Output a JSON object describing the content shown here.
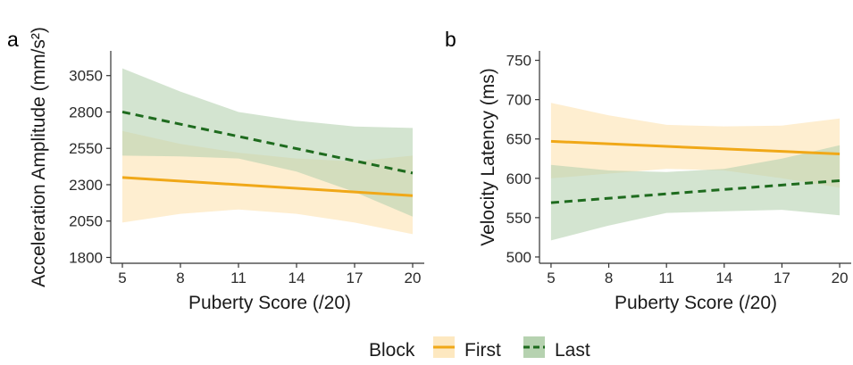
{
  "colors": {
    "first": "#f0a818",
    "first_band": "#fde8c0",
    "last": "#1e6b1e",
    "last_band": "#b6d2b0"
  },
  "legend": {
    "title": "Block",
    "items": [
      {
        "label": "First",
        "line": "solid",
        "color": "#f0a818"
      },
      {
        "label": "Last",
        "line": "dashed",
        "color": "#1e6b1e"
      }
    ]
  },
  "chart_data": [
    {
      "type": "line",
      "panel_label": "a",
      "xlabel": "Puberty Score (/20)",
      "ylabel": "Acceleration Amplitude (mm/s²)",
      "xlim": [
        4.4,
        20.6
      ],
      "ylim": [
        1760,
        3220
      ],
      "x_ticks": [
        5,
        8,
        11,
        14,
        17,
        20
      ],
      "y_ticks": [
        1800,
        2050,
        2300,
        2550,
        2800,
        3050
      ],
      "grid": false,
      "legend_position": "bottom",
      "series": [
        {
          "name": "First",
          "style": "solid",
          "x": [
            5,
            20
          ],
          "y": [
            2350,
            2225
          ],
          "band_x": [
            5,
            8,
            11,
            14,
            17,
            20
          ],
          "band_lower": [
            2040,
            2100,
            2130,
            2100,
            2040,
            1960
          ],
          "band_upper": [
            2670,
            2580,
            2520,
            2480,
            2460,
            2500
          ]
        },
        {
          "name": "Last",
          "style": "dashed",
          "x": [
            5,
            20
          ],
          "y": [
            2800,
            2380
          ],
          "band_x": [
            5,
            8,
            11,
            14,
            17,
            20
          ],
          "band_lower": [
            2500,
            2495,
            2480,
            2390,
            2250,
            2080
          ],
          "band_upper": [
            3100,
            2940,
            2800,
            2740,
            2700,
            2690
          ]
        }
      ]
    },
    {
      "type": "line",
      "panel_label": "b",
      "xlabel": "Puberty Score (/20)",
      "ylabel": "Velocity Latency (ms)",
      "xlim": [
        4.4,
        20.6
      ],
      "ylim": [
        492,
        762
      ],
      "x_ticks": [
        5,
        8,
        11,
        14,
        17,
        20
      ],
      "y_ticks": [
        500,
        550,
        600,
        650,
        700,
        750
      ],
      "grid": false,
      "legend_position": "bottom",
      "series": [
        {
          "name": "First",
          "style": "solid",
          "x": [
            5,
            20
          ],
          "y": [
            647,
            631
          ],
          "band_x": [
            5,
            8,
            11,
            14,
            17,
            20
          ],
          "band_lower": [
            600,
            606,
            612,
            610,
            600,
            588
          ],
          "band_upper": [
            696,
            680,
            668,
            666,
            667,
            676
          ]
        },
        {
          "name": "Last",
          "style": "dashed",
          "x": [
            5,
            20
          ],
          "y": [
            569,
            597
          ],
          "band_x": [
            5,
            8,
            11,
            14,
            17,
            20
          ],
          "band_lower": [
            521,
            540,
            556,
            558,
            560,
            553
          ],
          "band_upper": [
            617,
            610,
            608,
            612,
            625,
            642
          ]
        }
      ]
    }
  ]
}
